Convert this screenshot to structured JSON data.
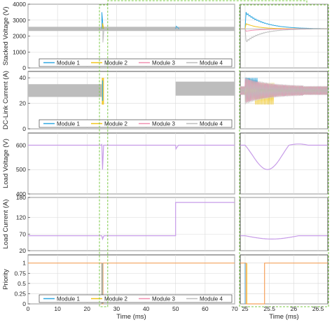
{
  "colors": {
    "module1": "#2ea7e0",
    "module2": "#f0c419",
    "module3": "#f08fb0",
    "module4": "#bdbdbd",
    "voltage": "#c79ce8",
    "priority": "#f5a25d",
    "highlight": "#7ac943"
  },
  "chart_data": [
    {
      "type": "line",
      "panel": "stacked-voltage",
      "ylabel": "Stacked Voltage (V)",
      "ylim": [
        0,
        4000
      ],
      "yticks": [
        "0",
        "1000",
        "2000",
        "3000",
        "4000"
      ],
      "xlim": [
        0,
        70
      ],
      "legend": [
        "Module 1",
        "Module 2",
        "Module 3",
        "Module 4"
      ],
      "legend_placement": "bottom-right",
      "series": [
        {
          "name": "Module 1",
          "baseline": 2450
        },
        {
          "name": "Module 2",
          "baseline": 2450
        },
        {
          "name": "Module 3",
          "baseline": 2450
        },
        {
          "name": "Module 4",
          "baseline": 2450
        }
      ],
      "events": [
        {
          "t": 25,
          "peak": 3500,
          "dip": 1600
        }
      ],
      "zoom": {
        "ylim": [
          0,
          4000
        ],
        "peaks": {
          "Module 1": 3500,
          "Module 2": 2800,
          "Module 3": 2300,
          "Module 4": 1600
        }
      }
    },
    {
      "type": "line",
      "panel": "dc-link-current",
      "ylabel": "DC-Link Current (A)",
      "ylim": [
        0,
        45
      ],
      "yticks": [
        "0",
        "20",
        "40"
      ],
      "xlim": [
        0,
        70
      ],
      "legend": [
        "Module 1",
        "Module 2",
        "Module 3",
        "Module 4"
      ],
      "legend_placement": "bottom-right",
      "band": [
        [
          0,
          25,
          25,
          35
        ],
        [
          50,
          70,
          26,
          37
        ]
      ],
      "events": [
        {
          "t": 25,
          "peak": 40,
          "dip": 19
        }
      ]
    },
    {
      "type": "line",
      "panel": "load-voltage",
      "ylabel": "Load Voltage (V)",
      "ylim": [
        400,
        650
      ],
      "yticks": [
        "400",
        "500",
        "600"
      ],
      "xlim": [
        0,
        70
      ],
      "series": [
        {
          "name": "Load Voltage",
          "baseline": 600
        }
      ],
      "events": [
        {
          "t": 25,
          "dip": 500,
          "overshoot": 605
        },
        {
          "t": 50,
          "dip": 585
        }
      ]
    },
    {
      "type": "line",
      "panel": "load-current",
      "ylabel": "Load Current (A)",
      "ylim": [
        20,
        180
      ],
      "yticks": [
        "20",
        "70",
        "120",
        "180"
      ],
      "xlim": [
        0,
        70
      ],
      "series": [
        {
          "name": "Load Current",
          "segments": [
            [
              0,
              50,
              65
            ],
            [
              50,
              70,
              165
            ]
          ]
        }
      ],
      "events": [
        {
          "t": 25,
          "dip": 55
        }
      ]
    },
    {
      "type": "line",
      "panel": "priority",
      "ylabel": "Priority",
      "ylim": [
        0,
        1.2
      ],
      "yticks": [
        "0",
        "0.25",
        "0.5",
        "0.75",
        "1"
      ],
      "xlim": [
        0,
        70
      ],
      "xticks": [
        "0",
        "10",
        "20",
        "30",
        "40",
        "50",
        "60",
        "70"
      ],
      "xlabel": "Time (ms)",
      "legend": [
        "Module 1",
        "Module 2",
        "Module 3",
        "Module 4"
      ],
      "legend_placement": "bottom-right",
      "series": [
        {
          "name": "Priority",
          "segments": [
            [
              0,
              25,
              1
            ],
            [
              25,
              25.4,
              0
            ],
            [
              25.4,
              70,
              1
            ]
          ]
        }
      ]
    },
    {
      "type": "line",
      "panel": "zoom",
      "xlim": [
        24.9,
        26.7
      ],
      "xticks": [
        "25",
        "25.5",
        "26",
        "26.5"
      ],
      "xlabel": "Time (ms)"
    }
  ]
}
